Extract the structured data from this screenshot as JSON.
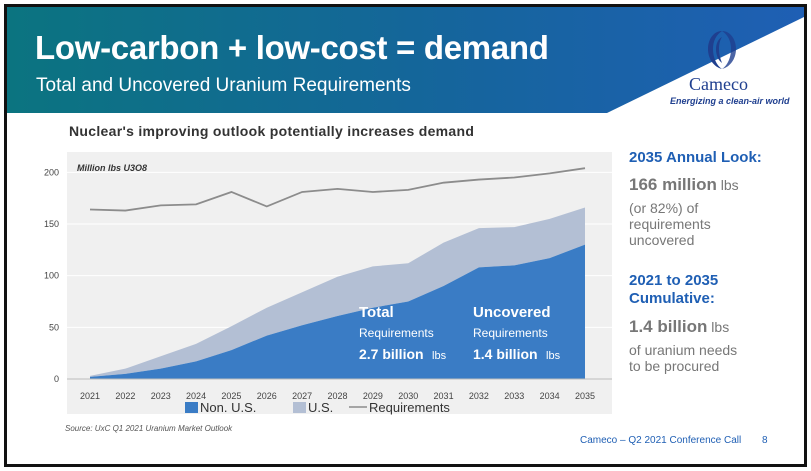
{
  "header": {
    "title": "Low-carbon + low-cost = demand",
    "subtitle": "Total and Uncovered Uranium Requirements",
    "company": "Cameco",
    "tagline": "Energizing a clean-air world"
  },
  "colors": {
    "banner_dark": "#0d6f7c",
    "banner_light": "#1f5fb4",
    "non_us": "#3a7cc5",
    "us": "#b3bfd4",
    "requirements_line": "#8c8c8c",
    "accent_blue": "#1f5fb4"
  },
  "chart_data": {
    "type": "area",
    "title": "Nuclear's improving outlook potentially increases demand",
    "unit_label": "Million lbs U3O8",
    "ylim": [
      0,
      210
    ],
    "yticks": [
      0,
      50,
      100,
      150,
      200
    ],
    "x": [
      "2021",
      "2022",
      "2023",
      "2024",
      "2025",
      "2026",
      "2027",
      "2028",
      "2029",
      "2030",
      "2031",
      "2032",
      "2033",
      "2034",
      "2035"
    ],
    "series": [
      {
        "name": "Non. U.S.",
        "kind": "stacked-area",
        "values": [
          2,
          5,
          10,
          17,
          28,
          42,
          52,
          61,
          69,
          75,
          90,
          108,
          110,
          117,
          130
        ]
      },
      {
        "name": "U.S.",
        "kind": "stacked-area",
        "values": [
          1,
          5,
          12,
          17,
          23,
          27,
          32,
          38,
          40,
          37,
          42,
          38,
          37,
          38,
          36
        ]
      },
      {
        "name": "Requirements",
        "kind": "line",
        "values": [
          164,
          163,
          168,
          169,
          181,
          167,
          181,
          184,
          181,
          183,
          190,
          193,
          195,
          199,
          204
        ]
      }
    ],
    "legend": {
      "placement": "bottom"
    },
    "annotations": [
      {
        "line1": "Total",
        "line2": "Requirements",
        "value": "2.7 billion",
        "unit": "lbs"
      },
      {
        "line1": "Uncovered",
        "line2": "Requirements",
        "value": "1.4 billion",
        "unit": "lbs"
      }
    ],
    "source": "Source: UxC Q1 2021 Uranium Market Outlook"
  },
  "sidebar": {
    "section1": {
      "heading": "2035 Annual Look:",
      "big": "166 million",
      "big_unit": "lbs",
      "lines": [
        "(or 82%) of",
        "requirements",
        "uncovered"
      ]
    },
    "section2": {
      "heading_line1": "2021 to 2035",
      "heading_line2": "Cumulative:",
      "big": "1.4 billion",
      "big_unit": "lbs",
      "lines": [
        "of uranium needs",
        "to be procured"
      ]
    }
  },
  "footer": {
    "label": "Cameco – Q2 2021 Conference Call",
    "page": "8"
  }
}
